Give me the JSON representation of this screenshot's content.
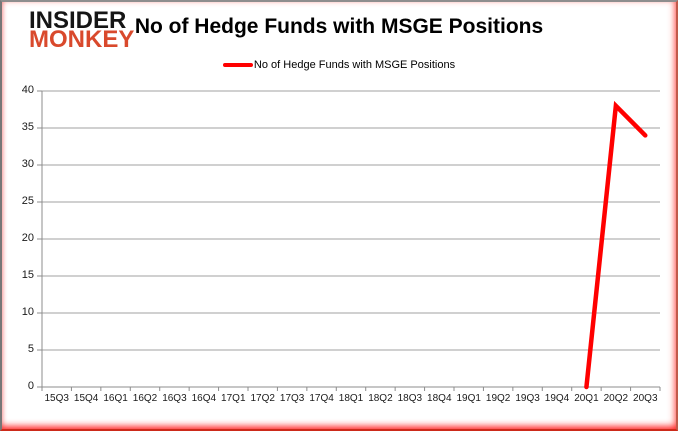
{
  "logo": {
    "line1": "INSIDER",
    "line2": "MONKEY",
    "line1_color": "#151515",
    "line2_color": "#d9492c"
  },
  "header": {
    "title": "No of Hedge Funds with MSGE Positions"
  },
  "legend": {
    "label": "No of Hedge Funds with MSGE Positions",
    "swatch_color": "#ff0000"
  },
  "chart_data": {
    "type": "line",
    "title": "No of Hedge Funds with MSGE Positions",
    "xlabel": "",
    "ylabel": "",
    "categories": [
      "15Q3",
      "15Q4",
      "16Q1",
      "16Q2",
      "16Q3",
      "16Q4",
      "17Q1",
      "17Q2",
      "17Q3",
      "17Q4",
      "18Q1",
      "18Q2",
      "18Q3",
      "18Q4",
      "19Q1",
      "19Q2",
      "19Q3",
      "19Q4",
      "20Q1",
      "20Q2",
      "20Q3"
    ],
    "series": [
      {
        "name": "No of Hedge Funds with MSGE Positions",
        "color": "#ff0000",
        "values": [
          null,
          null,
          null,
          null,
          null,
          null,
          null,
          null,
          null,
          null,
          null,
          null,
          null,
          null,
          null,
          null,
          null,
          null,
          0,
          38,
          34
        ]
      }
    ],
    "ylim": [
      0,
      40
    ],
    "ytick_step": 5,
    "yticks": [
      0,
      5,
      10,
      15,
      20,
      25,
      30,
      35,
      40
    ],
    "grid": true,
    "gridline_color": "#a0a0a0",
    "axis_color": "#8c8c8c",
    "legend_position": "top"
  }
}
